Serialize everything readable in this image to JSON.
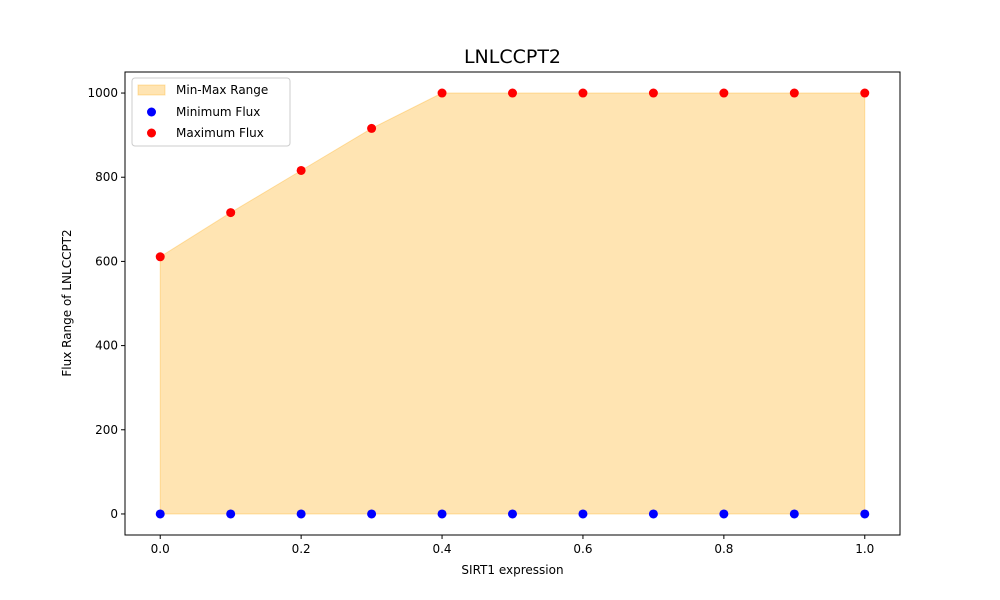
{
  "chart_data": {
    "type": "scatter",
    "title": "LNLCCPT2",
    "xlabel": "SIRT1 expression",
    "ylabel": "Flux Range of LNLCCPT2",
    "x": [
      0.0,
      0.1,
      0.2,
      0.3,
      0.4,
      0.5,
      0.6,
      0.7,
      0.8,
      0.9,
      1.0
    ],
    "series": [
      {
        "name": "Minimum Flux",
        "color": "#0000ff",
        "values": [
          0,
          0,
          0,
          0,
          0,
          0,
          0,
          0,
          0,
          0,
          0
        ]
      },
      {
        "name": "Maximum Flux",
        "color": "#ff0000",
        "values": [
          611,
          716,
          816,
          916,
          1000,
          1000,
          1000,
          1000,
          1000,
          1000,
          1000
        ]
      }
    ],
    "fill": {
      "name": "Min-Max Range",
      "color": "#ffa500",
      "opacity": 0.3
    },
    "xlim": [
      -0.05,
      1.05
    ],
    "ylim": [
      -50,
      1050
    ],
    "xticks": [
      "0.0",
      "0.2",
      "0.4",
      "0.6",
      "0.8",
      "1.0"
    ],
    "yticks": [
      "0",
      "200",
      "400",
      "600",
      "800",
      "1000"
    ],
    "grid": false,
    "legend_position": "upper-left"
  }
}
